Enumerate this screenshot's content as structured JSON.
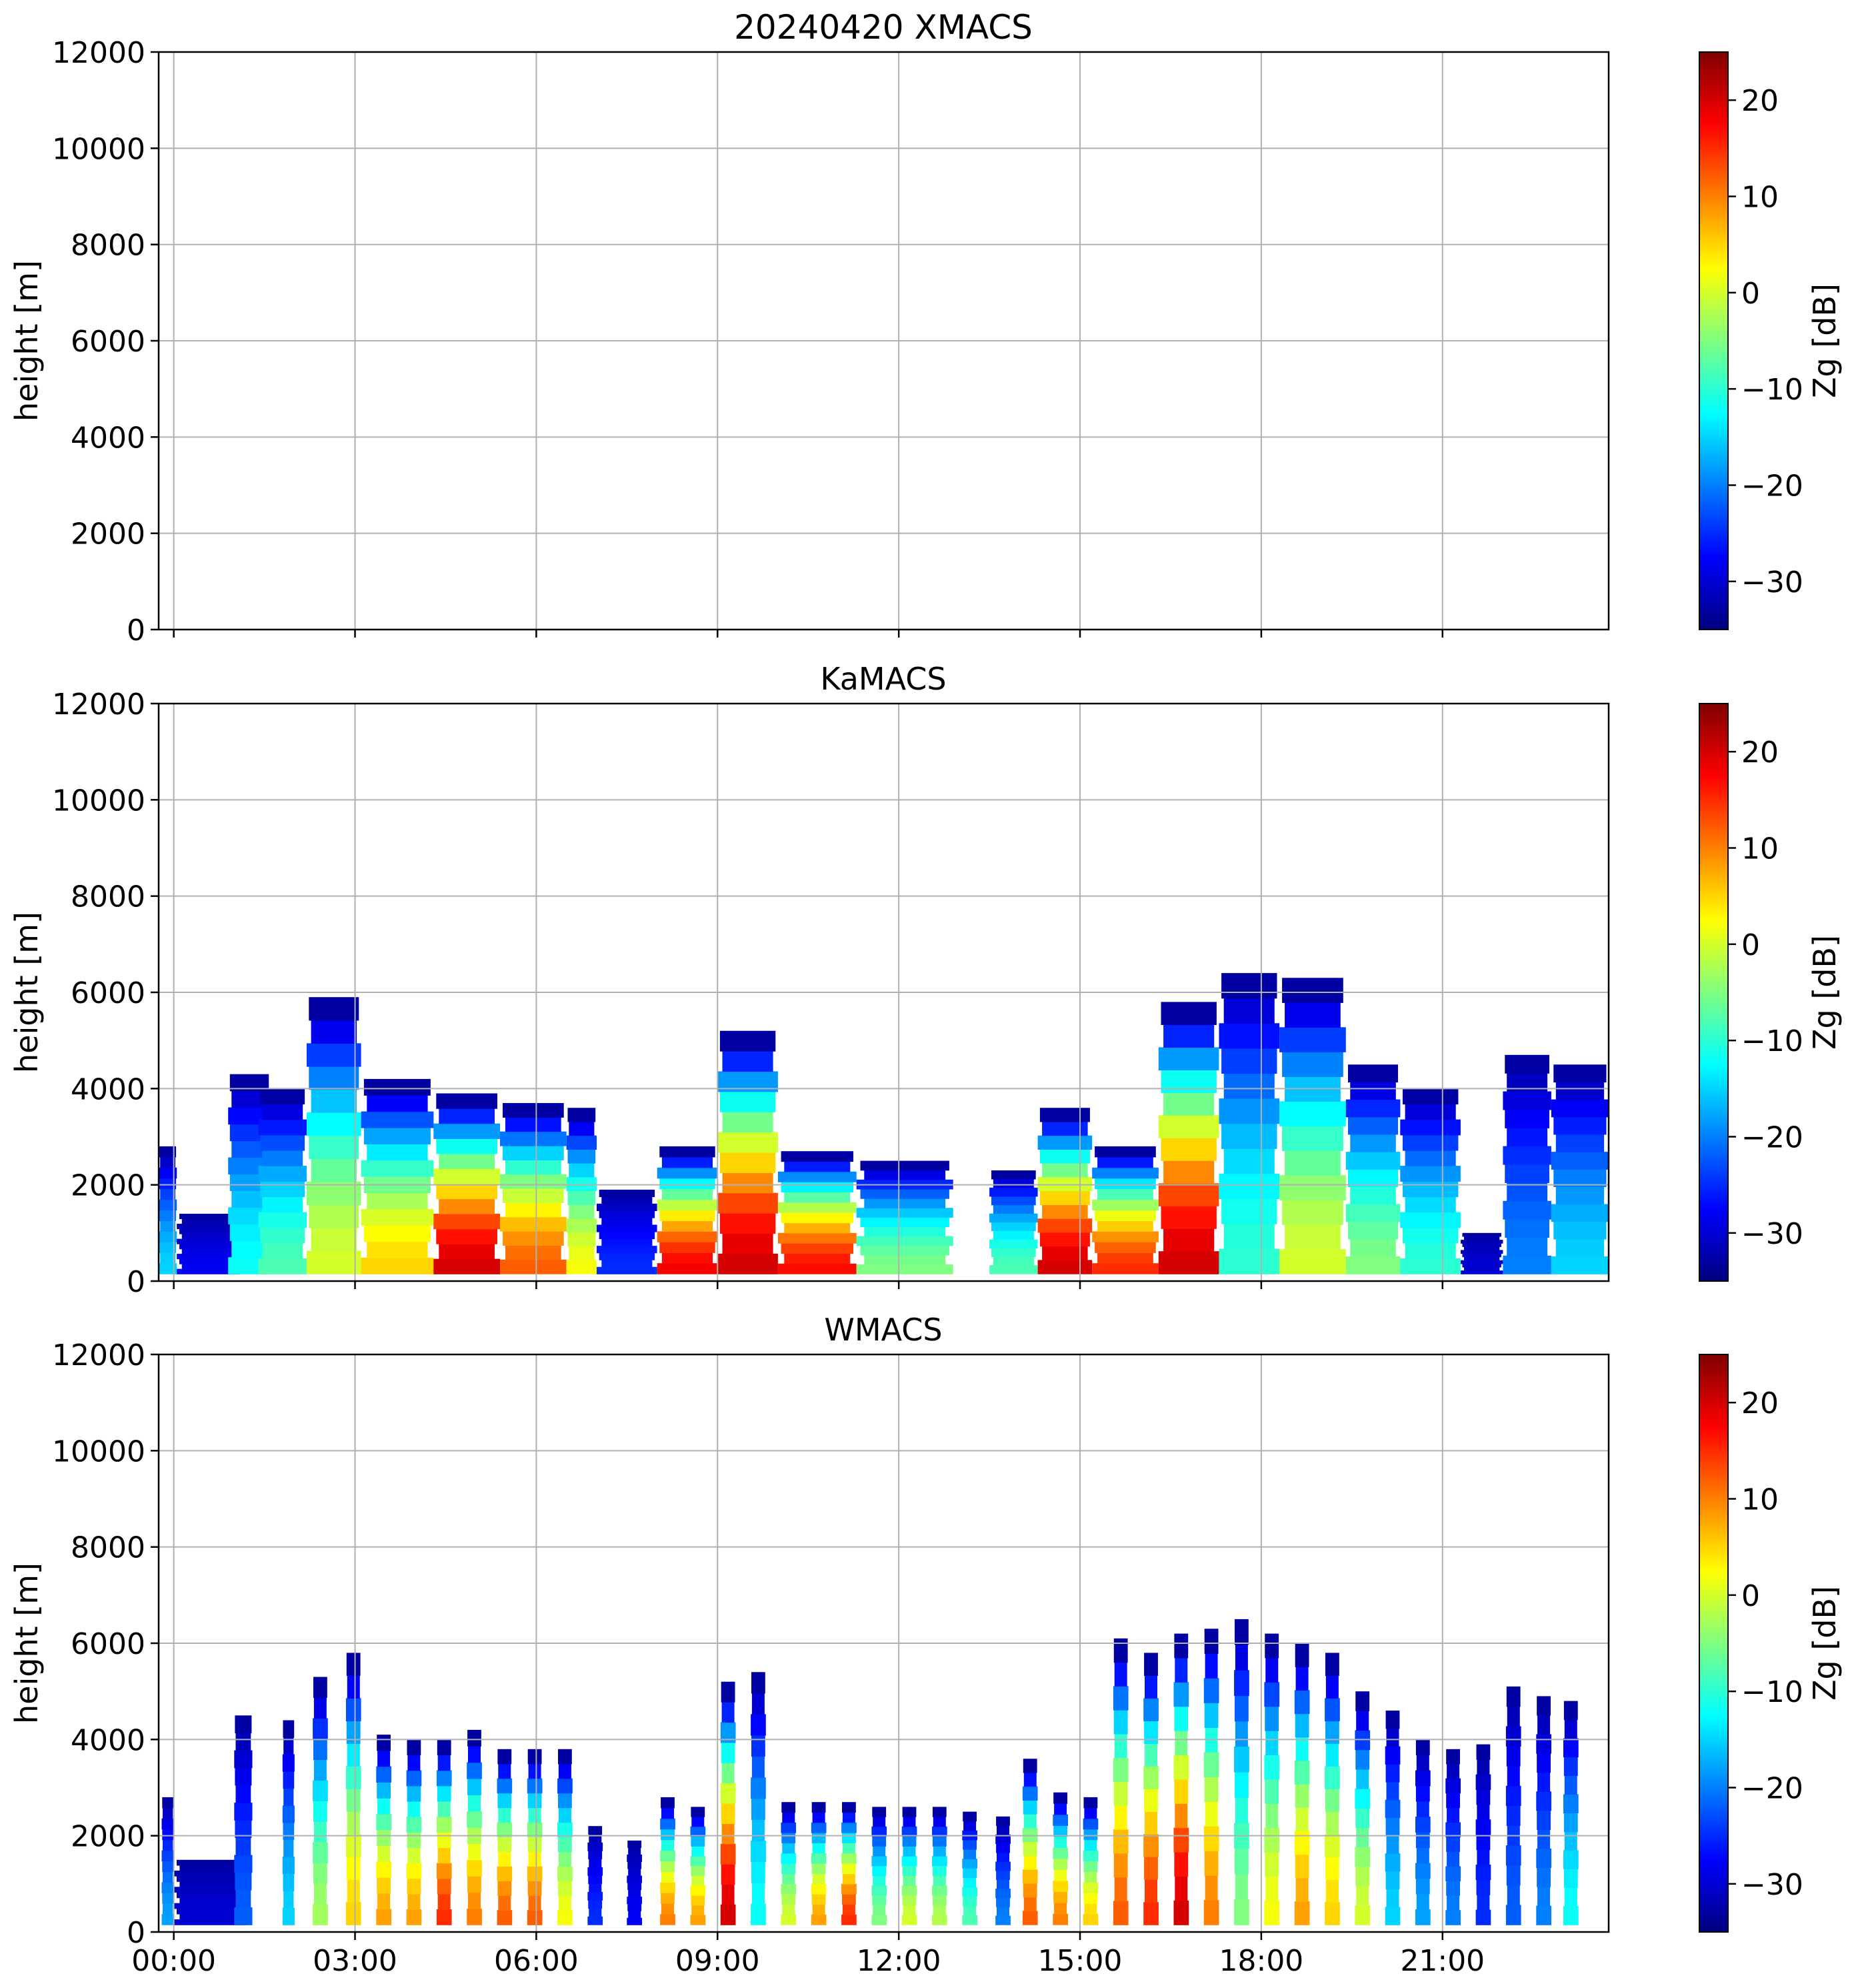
{
  "chart_data": [
    {
      "type": "heatmap",
      "title": "20240420 XMACS",
      "ylabel": "height [m]",
      "xlabel": "",
      "ylim": [
        0,
        12000
      ],
      "xlim_hours": [
        -0.25,
        23.75
      ],
      "yticks": [
        "0",
        "2000",
        "4000",
        "6000",
        "8000",
        "10000",
        "12000"
      ],
      "xticks": [],
      "grid": true,
      "colorbar": {
        "label": "Zg [dB]",
        "range": [
          -35,
          25
        ],
        "ticks": [
          "−30",
          "−20",
          "−10",
          "0",
          "10",
          "20"
        ],
        "colormap": "jet"
      },
      "echoes": []
    },
    {
      "type": "heatmap",
      "title": "KaMACS",
      "ylabel": "height [m]",
      "xlabel": "",
      "ylim": [
        0,
        12000
      ],
      "xlim_hours": [
        -0.25,
        23.75
      ],
      "yticks": [
        "0",
        "2000",
        "4000",
        "6000",
        "8000",
        "10000",
        "12000"
      ],
      "xticks": [],
      "grid": true,
      "colorbar": {
        "label": "Zg [dB]",
        "range": [
          -35,
          25
        ],
        "ticks": [
          "−30",
          "−20",
          "−10",
          "0",
          "10",
          "20"
        ],
        "colormap": "jet"
      },
      "echoes": [
        {
          "start": -0.25,
          "end": 0.05,
          "top": 2800,
          "peak": -15
        },
        {
          "start": 0.05,
          "end": 1.1,
          "top": 1400,
          "peak": -28
        },
        {
          "start": 0.9,
          "end": 1.6,
          "top": 4300,
          "peak": -12
        },
        {
          "start": 1.4,
          "end": 2.2,
          "top": 4000,
          "peak": -8
        },
        {
          "start": 2.2,
          "end": 3.1,
          "top": 5900,
          "peak": 0
        },
        {
          "start": 3.1,
          "end": 4.3,
          "top": 4200,
          "peak": 5
        },
        {
          "start": 4.3,
          "end": 5.4,
          "top": 3900,
          "peak": 20
        },
        {
          "start": 5.4,
          "end": 6.5,
          "top": 3700,
          "peak": 12
        },
        {
          "start": 6.5,
          "end": 7.0,
          "top": 3600,
          "peak": 2
        },
        {
          "start": 7.0,
          "end": 8.0,
          "top": 1900,
          "peak": -25
        },
        {
          "start": 8.0,
          "end": 9.0,
          "top": 2800,
          "peak": 18
        },
        {
          "start": 9.0,
          "end": 10.0,
          "top": 5200,
          "peak": 20
        },
        {
          "start": 10.0,
          "end": 11.3,
          "top": 2700,
          "peak": 17
        },
        {
          "start": 11.3,
          "end": 12.9,
          "top": 2500,
          "peak": -5
        },
        {
          "start": 13.5,
          "end": 14.3,
          "top": 2300,
          "peak": -8
        },
        {
          "start": 14.3,
          "end": 15.2,
          "top": 3600,
          "peak": 20
        },
        {
          "start": 15.2,
          "end": 16.3,
          "top": 2800,
          "peak": 15
        },
        {
          "start": 16.3,
          "end": 17.3,
          "top": 5800,
          "peak": 20
        },
        {
          "start": 17.3,
          "end": 18.3,
          "top": 6400,
          "peak": -10
        },
        {
          "start": 18.3,
          "end": 19.4,
          "top": 6300,
          "peak": 0
        },
        {
          "start": 19.4,
          "end": 20.3,
          "top": 4500,
          "peak": -5
        },
        {
          "start": 20.3,
          "end": 21.3,
          "top": 4000,
          "peak": -10
        },
        {
          "start": 21.3,
          "end": 22.0,
          "top": 1000,
          "peak": -30
        },
        {
          "start": 22.0,
          "end": 22.8,
          "top": 4700,
          "peak": -20
        },
        {
          "start": 22.8,
          "end": 23.75,
          "top": 4500,
          "peak": -15
        }
      ]
    },
    {
      "type": "heatmap",
      "title": "WMACS",
      "ylabel": "height [m]",
      "xlabel": "",
      "ylim": [
        0,
        12000
      ],
      "xlim_hours": [
        -0.25,
        23.75
      ],
      "yticks": [
        "0",
        "2000",
        "4000",
        "6000",
        "8000",
        "10000",
        "12000"
      ],
      "xticks": [
        "00:00",
        "03:00",
        "06:00",
        "09:00",
        "12:00",
        "15:00",
        "18:00",
        "21:00"
      ],
      "grid": true,
      "colorbar": {
        "label": "Zg [dB]",
        "range": [
          -35,
          25
        ],
        "ticks": [
          "−30",
          "−20",
          "−10",
          "0",
          "10",
          "20"
        ],
        "colormap": "jet"
      },
      "echoes": [
        {
          "start": -0.2,
          "end": 0.0,
          "top": 2800,
          "peak": -18
        },
        {
          "start": 0.0,
          "end": 1.2,
          "top": 1500,
          "peak": -30
        },
        {
          "start": 1.0,
          "end": 1.3,
          "top": 4500,
          "peak": -22
        },
        {
          "start": 1.8,
          "end": 2.0,
          "top": 4400,
          "peak": -15
        },
        {
          "start": 2.3,
          "end": 2.55,
          "top": 5300,
          "peak": -3
        },
        {
          "start": 2.85,
          "end": 3.1,
          "top": 5800,
          "peak": 5
        },
        {
          "start": 3.35,
          "end": 3.6,
          "top": 4100,
          "peak": 8
        },
        {
          "start": 3.85,
          "end": 4.1,
          "top": 4000,
          "peak": 8
        },
        {
          "start": 4.35,
          "end": 4.6,
          "top": 4000,
          "peak": 15
        },
        {
          "start": 4.85,
          "end": 5.1,
          "top": 4200,
          "peak": 10
        },
        {
          "start": 5.35,
          "end": 5.6,
          "top": 3800,
          "peak": 12
        },
        {
          "start": 5.85,
          "end": 6.1,
          "top": 3800,
          "peak": 12
        },
        {
          "start": 6.35,
          "end": 6.6,
          "top": 3800,
          "peak": 2
        },
        {
          "start": 6.85,
          "end": 7.1,
          "top": 2200,
          "peak": -25
        },
        {
          "start": 7.5,
          "end": 7.75,
          "top": 1900,
          "peak": -28
        },
        {
          "start": 8.05,
          "end": 8.3,
          "top": 2800,
          "peak": 10
        },
        {
          "start": 8.55,
          "end": 8.8,
          "top": 2600,
          "peak": 8
        },
        {
          "start": 9.05,
          "end": 9.3,
          "top": 5200,
          "peak": 20
        },
        {
          "start": 9.55,
          "end": 9.8,
          "top": 5400,
          "peak": -12
        },
        {
          "start": 10.05,
          "end": 10.3,
          "top": 2700,
          "peak": 0
        },
        {
          "start": 10.55,
          "end": 10.8,
          "top": 2700,
          "peak": 8
        },
        {
          "start": 11.05,
          "end": 11.3,
          "top": 2700,
          "peak": 15
        },
        {
          "start": 11.55,
          "end": 11.8,
          "top": 2600,
          "peak": -5
        },
        {
          "start": 12.05,
          "end": 12.3,
          "top": 2600,
          "peak": 0
        },
        {
          "start": 12.55,
          "end": 12.8,
          "top": 2600,
          "peak": -2
        },
        {
          "start": 13.05,
          "end": 13.3,
          "top": 2500,
          "peak": -8
        },
        {
          "start": 13.6,
          "end": 13.85,
          "top": 2400,
          "peak": -20
        },
        {
          "start": 14.05,
          "end": 14.3,
          "top": 3600,
          "peak": 12
        },
        {
          "start": 14.55,
          "end": 14.8,
          "top": 2900,
          "peak": 10
        },
        {
          "start": 15.05,
          "end": 15.3,
          "top": 2800,
          "peak": 5
        },
        {
          "start": 15.55,
          "end": 15.8,
          "top": 6100,
          "peak": 12
        },
        {
          "start": 16.05,
          "end": 16.3,
          "top": 5800,
          "peak": 15
        },
        {
          "start": 16.55,
          "end": 16.8,
          "top": 6200,
          "peak": 20
        },
        {
          "start": 17.05,
          "end": 17.3,
          "top": 6300,
          "peak": 10
        },
        {
          "start": 17.55,
          "end": 17.8,
          "top": 6500,
          "peak": -5
        },
        {
          "start": 18.05,
          "end": 18.3,
          "top": 6200,
          "peak": 2
        },
        {
          "start": 18.55,
          "end": 18.8,
          "top": 6000,
          "peak": 8
        },
        {
          "start": 19.05,
          "end": 19.3,
          "top": 5800,
          "peak": 5
        },
        {
          "start": 19.55,
          "end": 19.8,
          "top": 5000,
          "peak": 0
        },
        {
          "start": 20.05,
          "end": 20.3,
          "top": 4600,
          "peak": -15
        },
        {
          "start": 20.55,
          "end": 20.8,
          "top": 4000,
          "peak": -18
        },
        {
          "start": 21.05,
          "end": 21.3,
          "top": 3800,
          "peak": -20
        },
        {
          "start": 21.55,
          "end": 21.8,
          "top": 3900,
          "peak": -25
        },
        {
          "start": 22.05,
          "end": 22.3,
          "top": 5100,
          "peak": -22
        },
        {
          "start": 22.55,
          "end": 22.8,
          "top": 4900,
          "peak": -20
        },
        {
          "start": 23.0,
          "end": 23.25,
          "top": 4800,
          "peak": -12
        }
      ]
    }
  ]
}
